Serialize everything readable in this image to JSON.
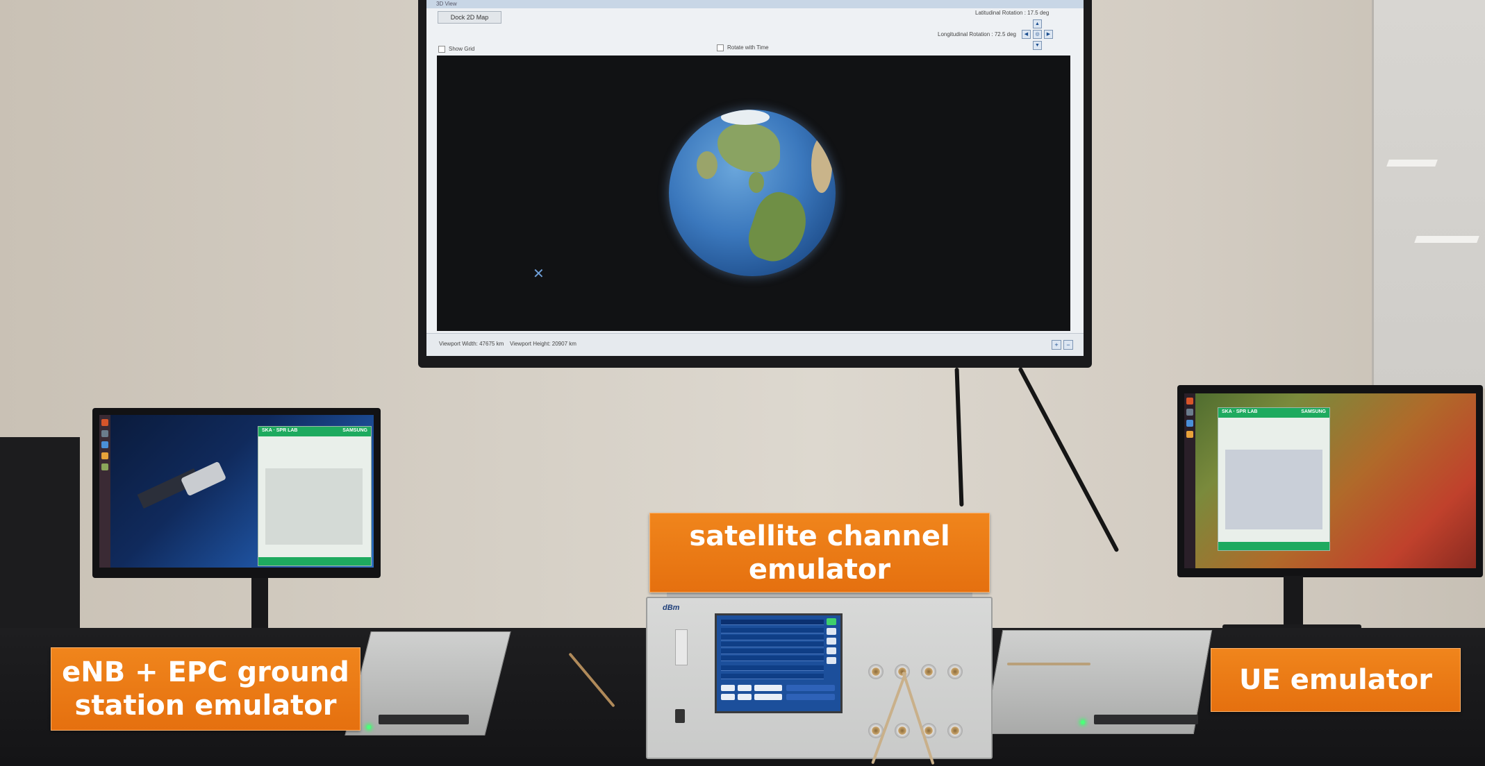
{
  "labels": {
    "channel_emulator": "satellite channel emulator",
    "ground_station": "eNB + EPC ground station emulator",
    "ue_emulator": "UE emulator"
  },
  "tv_app": {
    "title": "3D View",
    "dock_button": "Dock 2D Map",
    "latitudinal_rotation": "Latitudinal Rotation : 17.5 deg",
    "longitudinal_rotation": "Longitudinal Rotation : 72.5 deg",
    "show_grid": "Show Grid",
    "rotate_with_time": "Rotate with Time",
    "viewport_width": "Viewport Width: 47675 km",
    "viewport_height": "Viewport Height: 20907 km"
  },
  "monitor_app": {
    "brand_left": "SKA · SPR LAB",
    "brand_right": "SAMSUNG"
  },
  "colors": {
    "label_orange": "#e9771a",
    "app_green": "#1eaa5f",
    "emulator_screen_blue": "#1c4f9b"
  }
}
